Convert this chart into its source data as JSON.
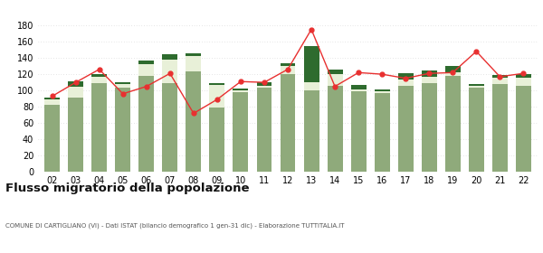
{
  "years": [
    "02",
    "03",
    "04",
    "05",
    "06",
    "07",
    "08",
    "09",
    "10",
    "11",
    "12",
    "13",
    "14",
    "15",
    "16",
    "17",
    "18",
    "19",
    "20",
    "21",
    "22"
  ],
  "iscritti_altri_comuni": [
    82,
    91,
    109,
    103,
    118,
    109,
    124,
    79,
    98,
    104,
    120,
    100,
    106,
    99,
    97,
    106,
    109,
    118,
    104,
    108,
    106
  ],
  "iscritti_estero": [
    7,
    14,
    8,
    5,
    14,
    29,
    18,
    28,
    2,
    2,
    10,
    10,
    14,
    2,
    2,
    8,
    8,
    4,
    2,
    8,
    10
  ],
  "iscritti_altri": [
    2,
    6,
    3,
    2,
    5,
    6,
    4,
    2,
    2,
    4,
    4,
    45,
    6,
    6,
    2,
    7,
    8,
    8,
    2,
    3,
    4
  ],
  "cancellati": [
    93,
    110,
    126,
    96,
    105,
    121,
    72,
    89,
    111,
    110,
    126,
    175,
    105,
    122,
    120,
    115,
    121,
    122,
    148,
    117,
    121
  ],
  "color_altri_comuni": "#8faa7b",
  "color_estero": "#e8f0d8",
  "color_altri": "#2e6b2e",
  "color_cancellati": "#e83030",
  "title": "Flusso migratorio della popolazione",
  "subtitle": "COMUNE DI CARTIGLIANO (VI) - Dati ISTAT (bilancio demografico 1 gen-31 dic) - Elaborazione TUTTITALIA.IT",
  "ylim": [
    0,
    180
  ],
  "yticks": [
    0,
    20,
    40,
    60,
    80,
    100,
    120,
    140,
    160,
    180
  ],
  "background_color": "#ffffff",
  "grid_color": "#cccccc"
}
